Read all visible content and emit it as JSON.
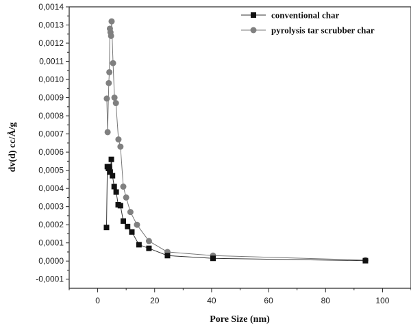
{
  "chart_data": {
    "type": "scatter",
    "title": "",
    "xlabel": "Pore Size (nm)",
    "ylabel": "dv(d) cc/Å/g",
    "xlim": [
      -10,
      110
    ],
    "ylim": [
      -0.00015,
      0.0014
    ],
    "x_ticks": [
      0,
      20,
      40,
      60,
      80,
      100
    ],
    "x_tick_labels": [
      "0",
      "20",
      "40",
      "60",
      "80",
      "100"
    ],
    "y_ticks": [
      -0.0001,
      0,
      0.0001,
      0.0002,
      0.0003,
      0.0004,
      0.0005,
      0.0006,
      0.0007,
      0.0008,
      0.0009,
      0.001,
      0.0011,
      0.0012,
      0.0013,
      0.0014
    ],
    "y_tick_labels": [
      "-0,0001",
      "0,0000",
      "0,0001",
      "0,0002",
      "0,0003",
      "0,0004",
      "0,0005",
      "0,0006",
      "0,0007",
      "0,0008",
      "0,0009",
      "0,0010",
      "0,0011",
      "0,0012",
      "0,0013",
      "0,0014"
    ],
    "grid": false,
    "legend_position": "top-right",
    "series": [
      {
        "name": "conventional char",
        "marker": "square",
        "color": "#111111",
        "points": [
          [
            3.1,
            0.000185
          ],
          [
            3.4,
            0.00052
          ],
          [
            3.8,
            0.00051
          ],
          [
            4.1,
            0.00052
          ],
          [
            4.4,
            0.00049
          ],
          [
            4.8,
            0.00056
          ],
          [
            5.2,
            0.00047
          ],
          [
            5.8,
            0.00041
          ],
          [
            6.5,
            0.00038
          ],
          [
            7.2,
            0.00031
          ],
          [
            8.0,
            0.000305
          ],
          [
            9.0,
            0.00022
          ],
          [
            10.5,
            0.00019
          ],
          [
            12.0,
            0.00016
          ],
          [
            14.5,
            9e-05
          ],
          [
            18.0,
            7e-05
          ],
          [
            24.5,
            3e-05
          ],
          [
            40.5,
            1.5e-05
          ],
          [
            94.0,
            2e-06
          ]
        ]
      },
      {
        "name": "pyrolysis tar scrubber char",
        "marker": "circle",
        "color": "#808080",
        "points": [
          [
            3.2,
            0.000895
          ],
          [
            3.5,
            0.00071
          ],
          [
            3.9,
            0.00098
          ],
          [
            4.1,
            0.00104
          ],
          [
            4.3,
            0.00128
          ],
          [
            4.5,
            0.00126
          ],
          [
            4.7,
            0.00124
          ],
          [
            4.9,
            0.00132
          ],
          [
            5.4,
            0.00109
          ],
          [
            5.9,
            0.0009
          ],
          [
            6.4,
            0.00087
          ],
          [
            7.3,
            0.00067
          ],
          [
            8.0,
            0.00063
          ],
          [
            9.0,
            0.00041
          ],
          [
            10.0,
            0.00035
          ],
          [
            11.5,
            0.00027
          ],
          [
            13.8,
            0.0002
          ],
          [
            18.0,
            0.00011
          ],
          [
            24.5,
            5e-05
          ],
          [
            40.5,
            3e-05
          ],
          [
            94.0,
            5e-06
          ]
        ]
      }
    ]
  }
}
